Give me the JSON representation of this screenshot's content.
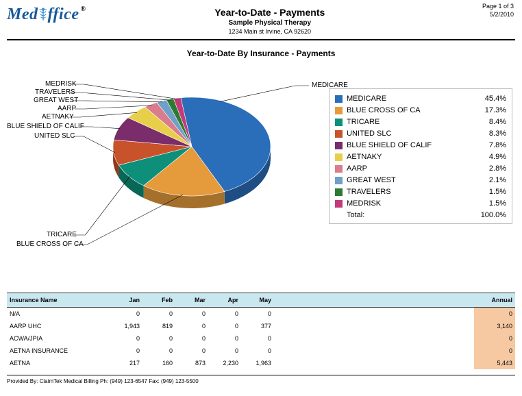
{
  "page_info": {
    "page_of": "Page 1 of 3",
    "date": "5/2/2010"
  },
  "logo": {
    "brand_med": "Med",
    "brand_off": "ffice",
    "reg": "®"
  },
  "header": {
    "title": "Year-to-Date - Payments",
    "subtitle": "Sample Physical Therapy",
    "address": "1234 Main st Irvine, CA  92620"
  },
  "chart": {
    "title": "Year-to-Date By Insurance - Payments",
    "type": "pie",
    "background_color": "#ffffff",
    "label_fontsize": 10,
    "legend_fontsize": 11,
    "slices": [
      {
        "name": "MEDICARE",
        "pct": 45.4,
        "color": "#2a6db8"
      },
      {
        "name": "BLUE CROSS OF CA",
        "pct": 17.3,
        "color": "#e59b3c"
      },
      {
        "name": "TRICARE",
        "pct": 8.4,
        "color": "#0d8f79"
      },
      {
        "name": "UNITED SLC",
        "pct": 8.3,
        "color": "#c8522a"
      },
      {
        "name": "BLUE SHIELD OF CALIF",
        "pct": 7.8,
        "color": "#7a2d6a"
      },
      {
        "name": "AETNAKY",
        "pct": 4.9,
        "color": "#e7cf4a"
      },
      {
        "name": "AARP",
        "pct": 2.8,
        "color": "#d97c8c"
      },
      {
        "name": "GREAT WEST",
        "pct": 2.1,
        "color": "#6fa0c7"
      },
      {
        "name": "TRAVELERS",
        "pct": 1.5,
        "color": "#2e7a32"
      },
      {
        "name": "MEDRISK",
        "pct": 1.5,
        "color": "#c33a7a"
      }
    ],
    "total_label": "Total:",
    "total_value": "100.0%"
  },
  "table": {
    "header_bg": "#c9e7ef",
    "annual_bg": "#f6c9a3",
    "columns": [
      "Insurance Name",
      "Jan",
      "Feb",
      "Mar",
      "Apr",
      "May",
      "Annual"
    ],
    "rows": [
      {
        "name": "N/A",
        "vals": [
          "0",
          "0",
          "0",
          "0",
          "0"
        ],
        "annual": "0"
      },
      {
        "name": "AARP UHC",
        "vals": [
          "1,943",
          "819",
          "0",
          "0",
          "377"
        ],
        "annual": "3,140"
      },
      {
        "name": "ACWA/JPIA",
        "vals": [
          "0",
          "0",
          "0",
          "0",
          "0"
        ],
        "annual": "0"
      },
      {
        "name": "AETNA INSURANCE",
        "vals": [
          "0",
          "0",
          "0",
          "0",
          "0"
        ],
        "annual": "0"
      },
      {
        "name": "AETNA",
        "vals": [
          "217",
          "160",
          "873",
          "2,230",
          "1,963"
        ],
        "annual": "5,443"
      }
    ]
  },
  "footer": {
    "text": "Provided By: ClaimTek Medical Billing    Ph: (949) 123-6547 Fax: (949) 123-5500"
  }
}
